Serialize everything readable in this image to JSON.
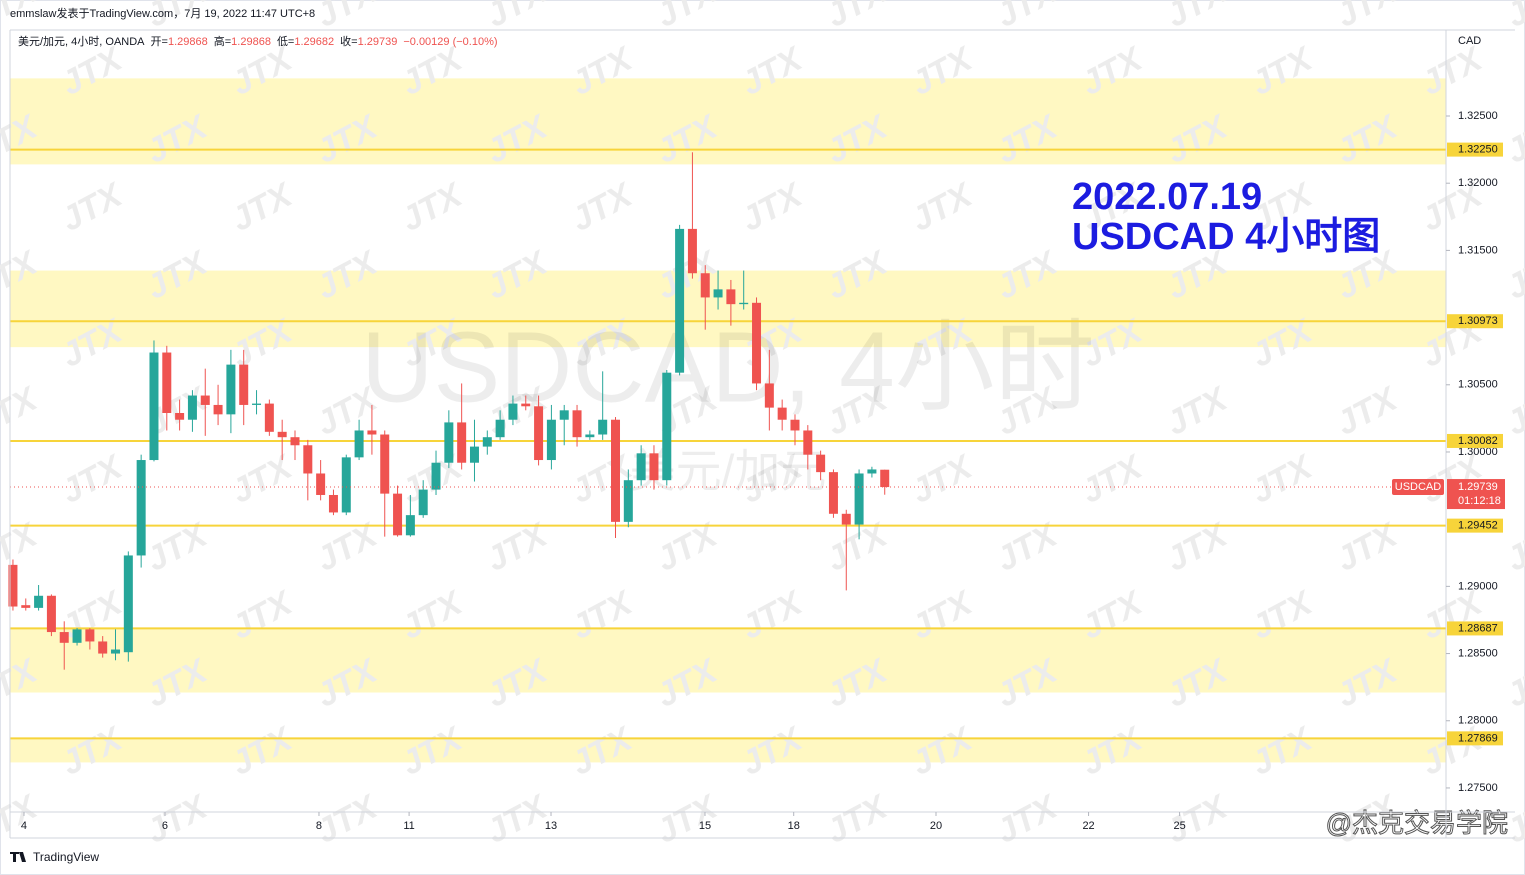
{
  "header": {
    "byline": "emmslaw发表于TradingView.com，7月 19, 2022 11:47 UTC+8"
  },
  "legend": {
    "symbol": "美元/加元, 4小时, OANDA",
    "open_label": "开=",
    "high_label": "高=",
    "low_label": "低=",
    "close_label": "收=",
    "change": "−0.00129 (−0.10%)"
  },
  "chart_data": {
    "type": "candlestick",
    "annotation": [
      "2022.07.19",
      "USDCAD 4小时图"
    ],
    "watermark_symbol": "USDCAD, 4小时",
    "watermark_name": "美元/加元",
    "currency": "CAD",
    "symbol_tag": "USDCAD",
    "countdown": "01:12:18",
    "up_color": "#26a69a",
    "down_color": "#ef5350",
    "candles": [
      [
        1.2916,
        1.292,
        1.2882,
        1.2885
      ],
      [
        1.2886,
        1.2891,
        1.2882,
        1.2884
      ],
      [
        1.2884,
        1.2901,
        1.2882,
        1.2893
      ],
      [
        1.2893,
        1.2894,
        1.2863,
        1.2866
      ],
      [
        1.2866,
        1.2874,
        1.2838,
        1.2858
      ],
      [
        1.2858,
        1.2869,
        1.2856,
        1.2868
      ],
      [
        1.2868,
        1.2869,
        1.2853,
        1.2859
      ],
      [
        1.2859,
        1.2863,
        1.2847,
        1.285
      ],
      [
        1.285,
        1.2868,
        1.2845,
        1.2853
      ],
      [
        1.2851,
        1.2926,
        1.2844,
        1.2923
      ],
      [
        1.2923,
        1.2998,
        1.2914,
        1.2994
      ],
      [
        1.2994,
        1.3083,
        1.2993,
        1.3074
      ],
      [
        1.3074,
        1.3079,
        1.3016,
        1.3029
      ],
      [
        1.3029,
        1.3039,
        1.3016,
        1.3024
      ],
      [
        1.3024,
        1.3046,
        1.3015,
        1.3042
      ],
      [
        1.3042,
        1.3062,
        1.3012,
        1.3035
      ],
      [
        1.3035,
        1.305,
        1.302,
        1.3028
      ],
      [
        1.3028,
        1.3076,
        1.3014,
        1.3065
      ],
      [
        1.3065,
        1.3076,
        1.302,
        1.3035
      ],
      [
        1.3035,
        1.3046,
        1.3028,
        1.3036
      ],
      [
        1.3036,
        1.3039,
        1.3012,
        1.3015
      ],
      [
        1.3015,
        1.3024,
        1.2994,
        1.3011
      ],
      [
        1.3011,
        1.3016,
        1.2994,
        1.3005
      ],
      [
        1.3005,
        1.3009,
        1.2964,
        1.2984
      ],
      [
        1.2984,
        1.2994,
        1.2964,
        1.2968
      ],
      [
        1.2968,
        1.2972,
        1.2953,
        1.2955
      ],
      [
        1.2955,
        1.2998,
        1.2953,
        1.2996
      ],
      [
        1.2996,
        1.3024,
        1.2994,
        1.3016
      ],
      [
        1.3016,
        1.3035,
        1.2998,
        1.3013
      ],
      [
        1.3013,
        1.3016,
        1.2937,
        1.2969
      ],
      [
        1.2969,
        1.2975,
        1.2937,
        1.2938
      ],
      [
        1.2938,
        1.2968,
        1.2937,
        1.2953
      ],
      [
        1.2953,
        1.2979,
        1.2951,
        1.2972
      ],
      [
        1.2972,
        1.3001,
        1.2968,
        1.2992
      ],
      [
        1.2992,
        1.3031,
        1.2988,
        1.3022
      ],
      [
        1.3022,
        1.3051,
        1.2987,
        1.2992
      ],
      [
        1.2992,
        1.3024,
        1.2978,
        1.3004
      ],
      [
        1.3004,
        1.3016,
        1.2998,
        1.3011
      ],
      [
        1.3011,
        1.3031,
        1.3009,
        1.3024
      ],
      [
        1.3024,
        1.3042,
        1.302,
        1.3036
      ],
      [
        1.3036,
        1.3042,
        1.3031,
        1.3034
      ],
      [
        1.3034,
        1.3042,
        1.299,
        1.2994
      ],
      [
        1.2994,
        1.3035,
        1.2987,
        1.3024
      ],
      [
        1.3024,
        1.3035,
        1.3005,
        1.3031
      ],
      [
        1.3031,
        1.3035,
        1.3004,
        1.3011
      ],
      [
        1.3011,
        1.3016,
        1.3009,
        1.3013
      ],
      [
        1.3013,
        1.306,
        1.3009,
        1.3024
      ],
      [
        1.3024,
        1.3026,
        1.2936,
        1.2948
      ],
      [
        1.2948,
        1.2987,
        1.2944,
        1.2979
      ],
      [
        1.2979,
        1.3005,
        1.2975,
        1.2999
      ],
      [
        1.2999,
        1.3005,
        1.2972,
        1.2979
      ],
      [
        1.2979,
        1.3061,
        1.2975,
        1.3059
      ],
      [
        1.3059,
        1.3169,
        1.3057,
        1.3166
      ],
      [
        1.3166,
        1.3223,
        1.3129,
        1.3133
      ],
      [
        1.3133,
        1.3139,
        1.3091,
        1.3115
      ],
      [
        1.3115,
        1.3135,
        1.3106,
        1.3121
      ],
      [
        1.3121,
        1.3128,
        1.3094,
        1.311
      ],
      [
        1.311,
        1.3135,
        1.3106,
        1.3111
      ],
      [
        1.3111,
        1.3115,
        1.3046,
        1.3051
      ],
      [
        1.3051,
        1.3076,
        1.3016,
        1.3033
      ],
      [
        1.3033,
        1.3039,
        1.3016,
        1.3024
      ],
      [
        1.3024,
        1.3028,
        1.3005,
        1.3016
      ],
      [
        1.3016,
        1.302,
        1.2987,
        1.2998
      ],
      [
        1.2998,
        1.3001,
        1.2979,
        1.2985
      ],
      [
        1.2985,
        1.2987,
        1.2951,
        1.2954
      ],
      [
        1.2954,
        1.2957,
        1.2897,
        1.2946
      ],
      [
        1.2946,
        1.2987,
        1.2935,
        1.2984
      ],
      [
        1.2984,
        1.2989,
        1.2981,
        1.2987
      ],
      [
        1.29868,
        1.29868,
        1.29682,
        1.29739
      ]
    ],
    "xlim": [
      -0.23,
      111.78
    ],
    "xticks": [
      {
        "value": 0.86,
        "label": "4"
      },
      {
        "value": 11.86,
        "label": "6"
      },
      {
        "value": 23.87,
        "label": "8"
      },
      {
        "value": 30.9,
        "label": "11"
      },
      {
        "value": 41.97,
        "label": "13"
      },
      {
        "value": 53.98,
        "label": "15"
      },
      {
        "value": 60.9,
        "label": "18"
      },
      {
        "value": 72.0,
        "label": "20"
      },
      {
        "value": 83.9,
        "label": "22"
      },
      {
        "value": 91.0,
        "label": "25"
      }
    ],
    "ylim": [
      1.27321,
      1.3314
    ],
    "yticks": [
      {
        "value": 1.325,
        "label": "1.32500"
      },
      {
        "value": 1.32,
        "label": "1.32000"
      },
      {
        "value": 1.315,
        "label": "1.31500"
      },
      {
        "value": 1.305,
        "label": "1.30500"
      },
      {
        "value": 1.3,
        "label": "1.30000"
      },
      {
        "value": 1.29,
        "label": "1.29000"
      },
      {
        "value": 1.285,
        "label": "1.28500"
      },
      {
        "value": 1.28,
        "label": "1.28000"
      },
      {
        "value": 1.275,
        "label": "1.27500"
      }
    ],
    "levels": [
      {
        "value": 1.3225,
        "label": "1.32250"
      },
      {
        "value": 1.30973,
        "label": "1.30973"
      },
      {
        "value": 1.30082,
        "label": "1.30082"
      },
      {
        "value": 1.29452,
        "label": "1.29452"
      },
      {
        "value": 1.28687,
        "label": "1.28687"
      },
      {
        "value": 1.27869,
        "label": "1.27869"
      }
    ],
    "level_color": "#f7d43a",
    "zones": [
      [
        1.3214,
        1.3278
      ],
      [
        1.3078,
        1.3135
      ],
      [
        1.2821,
        1.2869
      ],
      [
        1.2769,
        1.2787
      ]
    ],
    "zone_color": "#fff8c2"
  },
  "watermark": "JTX",
  "footer": {
    "logo": "TradingView",
    "credit": "@杰克交易学院"
  }
}
